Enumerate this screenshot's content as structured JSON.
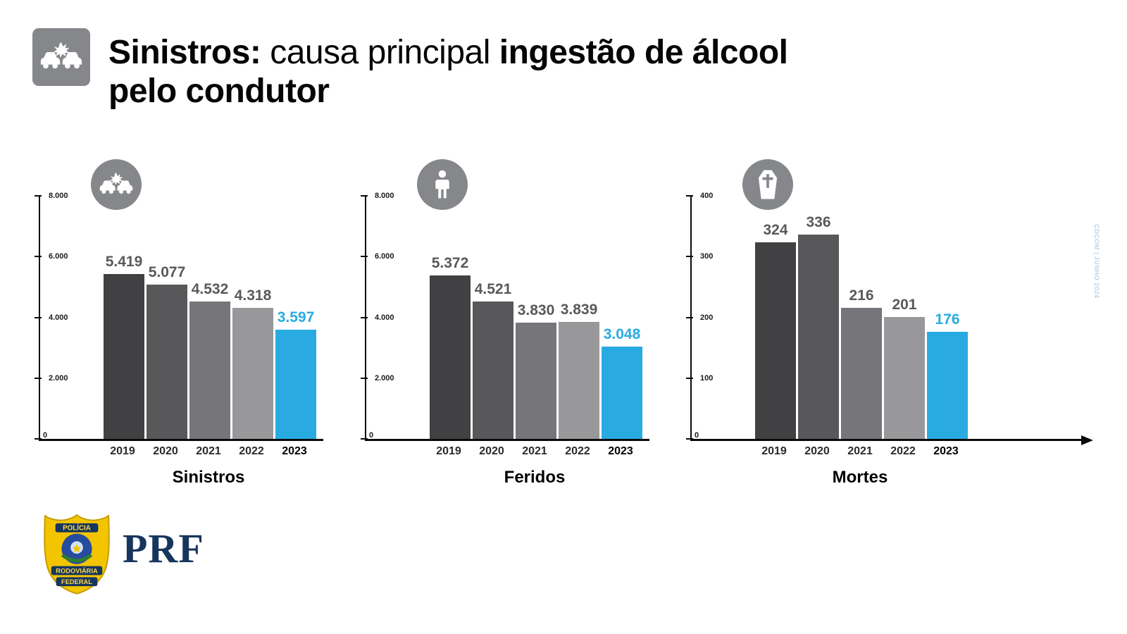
{
  "header": {
    "title_bold_1": "Sinistros:",
    "title_regular": " causa principal ",
    "title_bold_2": "ingestão de álcool",
    "title_line2_bold": "pelo condutor"
  },
  "colors": {
    "accent_blue": "#29abe2",
    "icon_gray": "#85878a",
    "brand_navy": "#17365d",
    "axis_black": "#0a0a0a",
    "bar_grays": [
      "#414042",
      "#58585a",
      "#76767a",
      "#98989b"
    ]
  },
  "chart_data": [
    {
      "type": "bar",
      "title": "Sinistros",
      "icon": "car-crash-icon",
      "categories": [
        "2019",
        "2020",
        "2021",
        "2022",
        "2023"
      ],
      "values": [
        5419,
        5077,
        4532,
        4318,
        3597
      ],
      "value_labels": [
        "5.419",
        "5.077",
        "4.532",
        "4.318",
        "3.597"
      ],
      "ylim": [
        0,
        8000
      ],
      "yticks": [
        8000,
        6000,
        4000,
        2000,
        0
      ],
      "ytick_labels": [
        "8.000",
        "6.000",
        "4.000",
        "2.000",
        "0"
      ],
      "bar_colors": [
        "#414042",
        "#58585a",
        "#76767a",
        "#98989b",
        "#29abe2"
      ],
      "label_colors": [
        "#58595b",
        "#58595b",
        "#58595b",
        "#58595b",
        "#29abe2"
      ],
      "grid": false,
      "legend": false
    },
    {
      "type": "bar",
      "title": "Feridos",
      "icon": "injured-person-icon",
      "categories": [
        "2019",
        "2020",
        "2021",
        "2022",
        "2023"
      ],
      "values": [
        5372,
        4521,
        3830,
        3839,
        3048
      ],
      "value_labels": [
        "5.372",
        "4.521",
        "3.830",
        "3.839",
        "3.048"
      ],
      "ylim": [
        0,
        8000
      ],
      "yticks": [
        8000,
        6000,
        4000,
        2000,
        0
      ],
      "ytick_labels": [
        "8.000",
        "6.000",
        "4.000",
        "2.000",
        "0"
      ],
      "bar_colors": [
        "#414042",
        "#58585a",
        "#76767a",
        "#98989b",
        "#29abe2"
      ],
      "label_colors": [
        "#58595b",
        "#58595b",
        "#58595b",
        "#58595b",
        "#29abe2"
      ],
      "grid": false,
      "legend": false
    },
    {
      "type": "bar",
      "title": "Mortes",
      "icon": "coffin-icon",
      "categories": [
        "2019",
        "2020",
        "2021",
        "2022",
        "2023"
      ],
      "values": [
        324,
        336,
        216,
        201,
        176
      ],
      "value_labels": [
        "324",
        "336",
        "216",
        "201",
        "176"
      ],
      "ylim": [
        0,
        400
      ],
      "yticks": [
        400,
        300,
        200,
        100,
        0
      ],
      "ytick_labels": [
        "400",
        "300",
        "200",
        "100",
        "0"
      ],
      "bar_colors": [
        "#414042",
        "#58585a",
        "#76767a",
        "#98989b",
        "#29abe2"
      ],
      "label_colors": [
        "#58595b",
        "#58595b",
        "#58595b",
        "#58595b",
        "#29abe2"
      ],
      "grid": false,
      "legend": false
    }
  ],
  "footer": {
    "brand": "PRF",
    "badge_top": "POLÍCIA",
    "badge_mid": "RODOVIÁRIA",
    "badge_bottom": "FEDERAL"
  },
  "credit": "CDCOM | JUNHO 2024"
}
